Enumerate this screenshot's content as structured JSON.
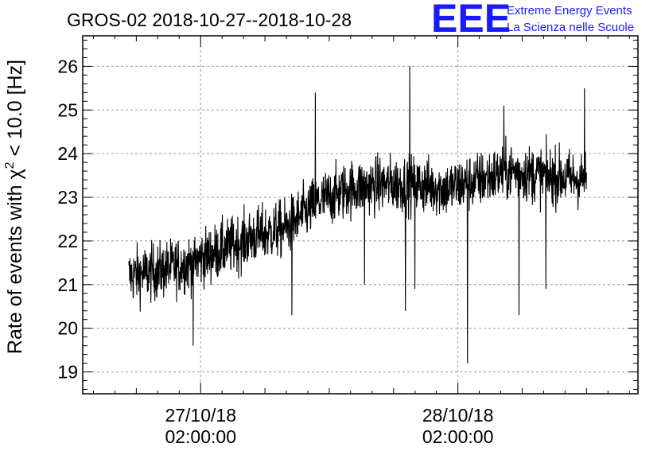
{
  "header": {
    "title": "GROS-02 2018-10-27--2018-10-28",
    "logo_mark": "EEE",
    "logo_line1": "Extreme Energy Events",
    "logo_line2": "La Scienza nelle Scuole"
  },
  "colors": {
    "logo": "#1a1aff",
    "series": "#000000",
    "grid": "#999999"
  },
  "chart_data": {
    "type": "line",
    "title": "GROS-02 2018-10-27--2018-10-28",
    "xlabel": "",
    "ylabel_prefix": "Rate of events with χ",
    "ylabel_sup": "2",
    "ylabel_suffix": " < 10.0 [Hz]",
    "x_unit": "hours since 2018-10-26 00:00",
    "xlim": [
      15.0,
      66.8
    ],
    "ylim": [
      18.5,
      26.7
    ],
    "yticks": [
      19,
      20,
      21,
      22,
      23,
      24,
      25,
      26
    ],
    "xticks": [
      {
        "x": 26.0,
        "date": "27/10/18",
        "time": "02:00:00"
      },
      {
        "x": 50.0,
        "date": "28/10/18",
        "time": "02:00:00"
      }
    ],
    "grid": true,
    "x_range_of_data": [
      19.3,
      62.0
    ],
    "mean_profile": [
      {
        "x": 19.3,
        "y": 21.2
      },
      {
        "x": 22.0,
        "y": 21.3
      },
      {
        "x": 25.0,
        "y": 21.5
      },
      {
        "x": 28.0,
        "y": 21.8
      },
      {
        "x": 31.0,
        "y": 22.1
      },
      {
        "x": 34.0,
        "y": 22.3
      },
      {
        "x": 37.0,
        "y": 22.9
      },
      {
        "x": 40.0,
        "y": 23.2
      },
      {
        "x": 43.0,
        "y": 23.3
      },
      {
        "x": 46.0,
        "y": 23.3
      },
      {
        "x": 49.0,
        "y": 23.2
      },
      {
        "x": 52.0,
        "y": 23.4
      },
      {
        "x": 55.0,
        "y": 23.6
      },
      {
        "x": 58.0,
        "y": 23.5
      },
      {
        "x": 62.0,
        "y": 23.4
      }
    ],
    "noise_amplitude": 0.55,
    "notable_spikes": [
      {
        "x": 36.7,
        "y": 25.4
      },
      {
        "x": 45.5,
        "y": 26.0
      },
      {
        "x": 54.3,
        "y": 25.1
      },
      {
        "x": 61.8,
        "y": 25.5
      },
      {
        "x": 45.1,
        "y": 20.4
      },
      {
        "x": 46.0,
        "y": 20.9
      },
      {
        "x": 50.9,
        "y": 19.2
      },
      {
        "x": 55.7,
        "y": 20.3
      },
      {
        "x": 58.2,
        "y": 20.9
      },
      {
        "x": 34.5,
        "y": 20.3
      },
      {
        "x": 25.3,
        "y": 19.6
      },
      {
        "x": 41.3,
        "y": 21.0
      }
    ]
  }
}
